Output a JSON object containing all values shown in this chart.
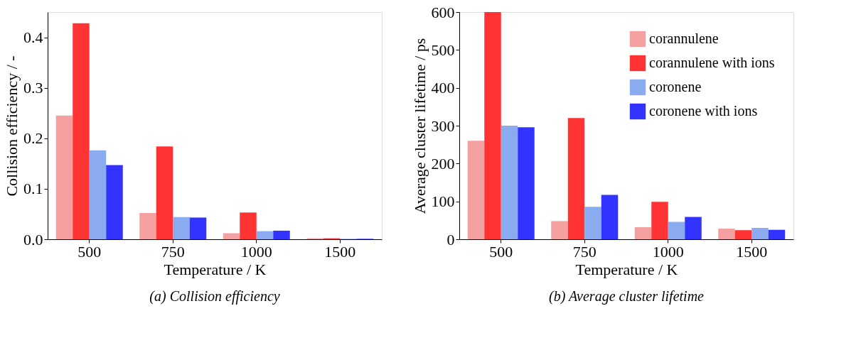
{
  "chart_data": [
    {
      "type": "bar",
      "title": "(a) Collision efficiency",
      "xlabel": "Temperature / K",
      "ylabel": "Collision efficiency / -",
      "categories": [
        "500",
        "750",
        "1000",
        "1500"
      ],
      "series": [
        {
          "color": "#f4a0a0",
          "values": [
            0.245,
            0.052,
            0.012,
            0.002
          ]
        },
        {
          "color": "#ff3333",
          "values": [
            0.428,
            0.184,
            0.053,
            0.002
          ]
        },
        {
          "color": "#8aabf0",
          "values": [
            0.176,
            0.044,
            0.016,
            0.001
          ]
        },
        {
          "color": "#3333ff",
          "values": [
            0.147,
            0.043,
            0.017,
            0.001
          ]
        }
      ],
      "ylim": [
        0,
        0.45
      ],
      "yticks": [
        {
          "value": 0,
          "label": "0.0"
        },
        0.1,
        0.2,
        0.3,
        0.4
      ],
      "grid": false,
      "legend": false
    },
    {
      "type": "bar",
      "title": "(b) Average cluster lifetime",
      "xlabel": "Temperature / K",
      "ylabel": "Average cluster lifetime / ps",
      "categories": [
        "500",
        "750",
        "1000",
        "1500"
      ],
      "series": [
        {
          "name": "corannulene",
          "color": "#f4a0a0",
          "values": [
            260,
            48,
            32,
            28
          ]
        },
        {
          "name": "corannulene with ions",
          "color": "#ff3333",
          "values": [
            600,
            320,
            99,
            24
          ]
        },
        {
          "name": "coronene",
          "color": "#8aabf0",
          "values": [
            300,
            86,
            46,
            30
          ]
        },
        {
          "name": "coronene with ions",
          "color": "#3333ff",
          "values": [
            296,
            117,
            59,
            25
          ]
        }
      ],
      "ylim": [
        0,
        600
      ],
      "yticks": [
        0,
        100,
        200,
        300,
        400,
        500,
        600
      ],
      "grid": false,
      "legend": "top right"
    }
  ]
}
